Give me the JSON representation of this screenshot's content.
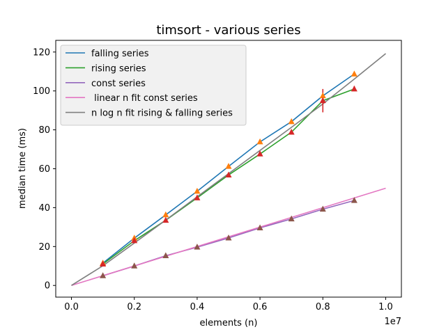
{
  "chart_data": {
    "type": "line",
    "title": "timsort - various series",
    "xlabel": "elements (n)",
    "ylabel": "median time (ms)",
    "x_offset_label": "1e7",
    "xlim": [
      -500000,
      10500000
    ],
    "ylim": [
      -6,
      126
    ],
    "x_ticks": [
      0,
      2000000,
      4000000,
      6000000,
      8000000,
      10000000
    ],
    "x_tick_labels": [
      "0.0",
      "0.2",
      "0.4",
      "0.6",
      "0.8",
      "1.0"
    ],
    "y_ticks": [
      0,
      20,
      40,
      60,
      80,
      100,
      120
    ],
    "y_tick_labels": [
      "0",
      "20",
      "40",
      "60",
      "80",
      "100",
      "120"
    ],
    "grid": false,
    "legend_position": "top-left",
    "series": [
      {
        "name": "falling series",
        "color": "#1f77b4",
        "x": [
          1000000,
          2000000,
          3000000,
          4000000,
          5000000,
          6000000,
          7000000,
          8000000,
          9000000
        ],
        "y": [
          11.5,
          24.3,
          36.3,
          48.4,
          61.2,
          73.8,
          84.2,
          97.5,
          108.7
        ]
      },
      {
        "name": "rising series",
        "color": "#2ca02c",
        "x": [
          1000000,
          2000000,
          3000000,
          4000000,
          5000000,
          6000000,
          7000000,
          8000000,
          9000000
        ],
        "y": [
          11.0,
          23.0,
          33.5,
          45.0,
          56.8,
          67.6,
          78.8,
          95.0,
          101.0
        ]
      },
      {
        "name": "const series",
        "color": "#9467bd",
        "x": [
          1000000,
          2000000,
          3000000,
          4000000,
          5000000,
          6000000,
          7000000,
          8000000,
          9000000
        ],
        "y": [
          5.0,
          10.0,
          15.3,
          19.7,
          24.4,
          29.6,
          34.2,
          39.2,
          43.7
        ]
      },
      {
        "name": " linear n fit const series",
        "color": "#e377c2",
        "x": [
          0,
          10000000
        ],
        "y": [
          0,
          50.0
        ]
      },
      {
        "name": "n log n fit rising & falling series",
        "color": "#7f7f7f",
        "x": [
          0,
          1000000,
          2000000,
          3000000,
          4000000,
          5000000,
          6000000,
          7000000,
          8000000,
          9000000,
          10000000
        ],
        "y": [
          0,
          10.1,
          21.8,
          33.6,
          45.6,
          57.5,
          69.4,
          81.3,
          93.3,
          106.1,
          119.2
        ]
      }
    ],
    "markers": [
      {
        "color": "#ff7f0e",
        "shape": "triangle",
        "x": [
          1000000,
          2000000,
          3000000,
          4000000,
          5000000,
          6000000,
          7000000,
          8000000,
          9000000
        ],
        "y": [
          11.5,
          24.3,
          36.3,
          48.4,
          61.2,
          73.8,
          84.2,
          97.5,
          108.7
        ]
      },
      {
        "color": "#d62728",
        "shape": "triangle",
        "x": [
          1000000,
          2000000,
          3000000,
          4000000,
          5000000,
          6000000,
          7000000,
          8000000,
          9000000
        ],
        "y": [
          11.0,
          23.0,
          33.5,
          45.0,
          56.8,
          67.6,
          78.8,
          95.0,
          101.0
        ]
      },
      {
        "color": "#8c564b",
        "shape": "triangle",
        "x": [
          1000000,
          2000000,
          3000000,
          4000000,
          5000000,
          6000000,
          7000000,
          8000000,
          9000000
        ],
        "y": [
          5.0,
          10.0,
          15.3,
          19.7,
          24.4,
          29.6,
          34.2,
          39.2,
          43.7
        ]
      }
    ],
    "error_bars": [
      {
        "color": "#d62728",
        "x": 8000000,
        "y_low": 89.0,
        "y_high": 101.0
      },
      {
        "color": "#d62728",
        "x": 9000000,
        "y_low": 100.0,
        "y_high": 102.5
      }
    ]
  }
}
